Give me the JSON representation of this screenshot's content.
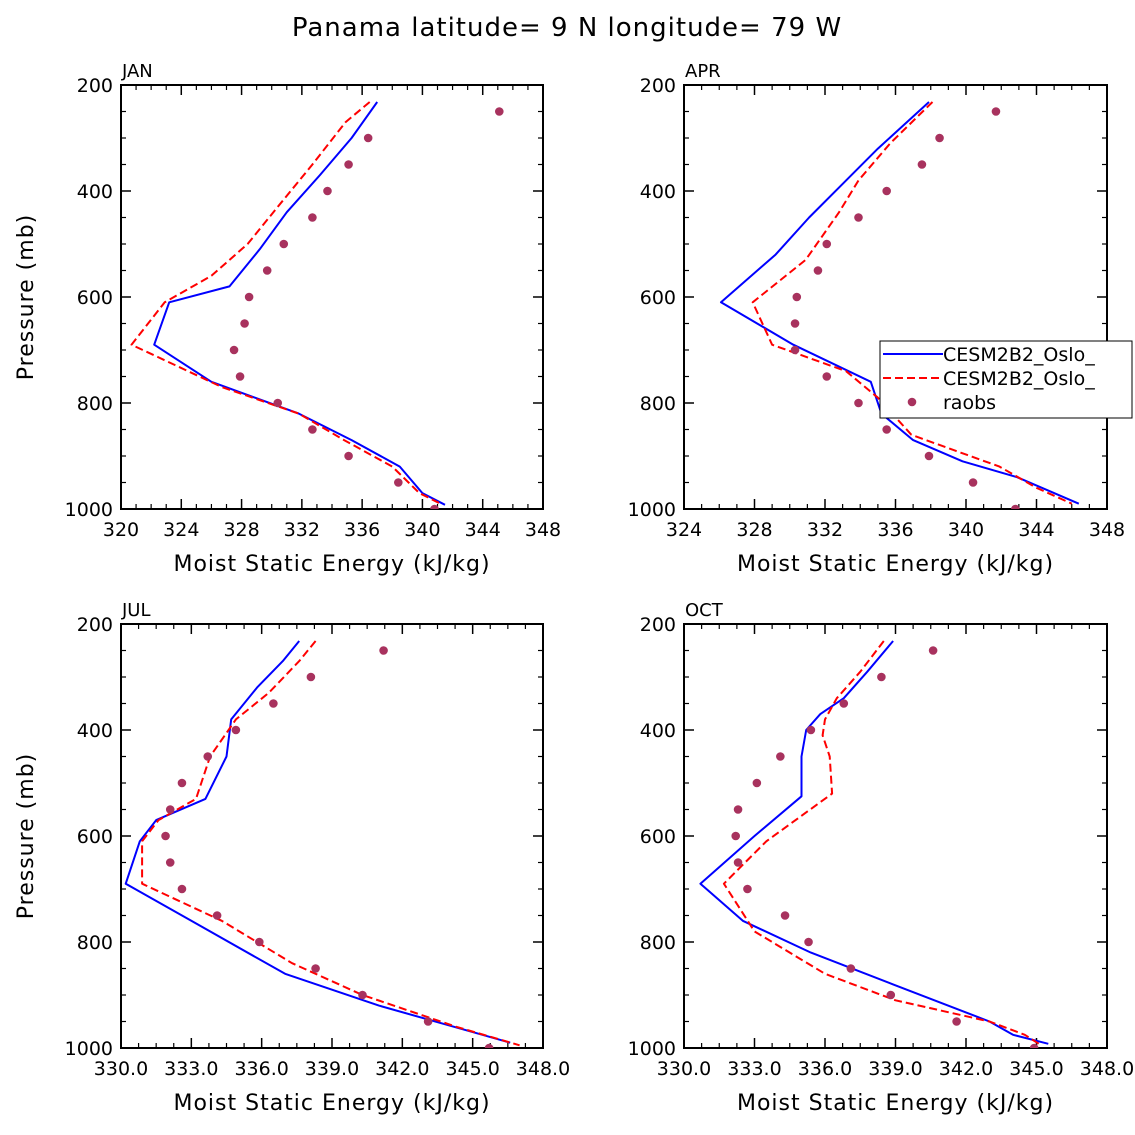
{
  "chart_data": {
    "type": "line",
    "title": "Panama  latitude= 9 N longitude= 79 W",
    "legend": {
      "placement": "right-middle of APR panel",
      "entries": [
        {
          "name": "CESM2B2_Oslo_",
          "style": "solid",
          "color": "#0000ff"
        },
        {
          "name": "CESM2B2_Oslo_",
          "style": "dashed",
          "color": "#ff0000"
        },
        {
          "name": "raobs",
          "style": "marker",
          "color": "#a8325e"
        }
      ]
    },
    "panels": [
      {
        "label": "JAN",
        "xlabel": "Moist Static Energy (kJ/kg)",
        "ylabel": "Pressure (mb)",
        "xlim": [
          320,
          348
        ],
        "ylim": [
          1000,
          200
        ],
        "xticks": [
          320,
          324,
          328,
          332,
          336,
          340,
          344,
          348
        ],
        "xtick_labels": [
          "320",
          "324",
          "328",
          "332",
          "336",
          "340",
          "344",
          "348"
        ],
        "yticks": [
          200,
          400,
          600,
          800,
          1000
        ],
        "ytick_labels": [
          "200",
          "400",
          "600",
          "800",
          "1000"
        ],
        "series": [
          {
            "name": "CESM2B2_Oslo_",
            "style": "solid",
            "color": "#0000ff",
            "x": [
              337.0,
              335.3,
              333.2,
              331.0,
              329.2,
              327.2,
              323.2,
              322.2,
              326.0,
              331.8,
              335.3,
              338.5,
              340.0,
              341.5
            ],
            "y": [
              232,
              300,
              370,
              440,
              510,
              580,
              610,
              690,
              760,
              820,
              870,
              920,
              970,
              992
            ]
          },
          {
            "name": "CESM2B2_Oslo_",
            "style": "dashed",
            "color": "#ff0000",
            "x": [
              336.5,
              334.9,
              332.7,
              330.4,
              328.4,
              326.0,
              322.9,
              320.7,
              326.7,
              331.8,
              334.8,
              338.0,
              339.8,
              341.2
            ],
            "y": [
              232,
              270,
              350,
              430,
              500,
              560,
              610,
              690,
              770,
              820,
              870,
              920,
              970,
              990
            ]
          },
          {
            "name": "raobs",
            "style": "marker",
            "color": "#a8325e",
            "x": [
              345.1,
              336.4,
              335.1,
              333.7,
              332.7,
              330.8,
              329.7,
              328.5,
              328.2,
              327.5,
              327.9,
              330.4,
              332.7,
              335.1,
              338.4,
              340.8
            ],
            "y": [
              250,
              300,
              350,
              400,
              450,
              500,
              550,
              600,
              650,
              700,
              750,
              800,
              850,
              900,
              950,
              1000
            ]
          }
        ]
      },
      {
        "label": "APR",
        "xlabel": "Moist Static Energy (kJ/kg)",
        "ylabel": "",
        "xlim": [
          324,
          348
        ],
        "ylim": [
          1000,
          200
        ],
        "xticks": [
          324,
          328,
          332,
          336,
          340,
          344,
          348
        ],
        "xtick_labels": [
          "324",
          "328",
          "332",
          "336",
          "340",
          "344",
          "348"
        ],
        "yticks": [
          200,
          400,
          600,
          800,
          1000
        ],
        "ytick_labels": [
          "200",
          "400",
          "600",
          "800",
          "1000"
        ],
        "series": [
          {
            "name": "CESM2B2_Oslo_",
            "style": "solid",
            "color": "#0000ff",
            "x": [
              337.9,
              335.0,
              333.2,
              331.1,
              329.2,
              326.1,
              330.2,
              334.6,
              335.2,
              337.0,
              339.8,
              342.9,
              345.0,
              346.4
            ],
            "y": [
              232,
              320,
              380,
              450,
              520,
              610,
              690,
              760,
              820,
              870,
              910,
              940,
              970,
              990
            ]
          },
          {
            "name": "CESM2B2_Oslo_",
            "style": "dashed",
            "color": "#ff0000",
            "x": [
              338.1,
              335.7,
              333.9,
              332.8,
              330.9,
              327.9,
              329.0,
              333.2,
              335.0,
              336.9,
              339.4,
              341.9,
              344.0,
              346.0
            ],
            "y": [
              232,
              310,
              380,
              440,
              530,
              610,
              690,
              740,
              790,
              860,
              890,
              920,
              960,
              990
            ]
          },
          {
            "name": "raobs",
            "style": "marker",
            "color": "#a8325e",
            "x": [
              341.7,
              338.5,
              337.5,
              335.5,
              333.9,
              332.1,
              331.6,
              330.4,
              330.3,
              330.3,
              332.1,
              333.9,
              335.5,
              337.9,
              340.4,
              342.8
            ],
            "y": [
              250,
              300,
              350,
              400,
              450,
              500,
              550,
              600,
              650,
              700,
              750,
              800,
              850,
              900,
              950,
              1000
            ]
          }
        ]
      },
      {
        "label": "JUL",
        "xlabel": "Moist Static Energy (kJ/kg)",
        "ylabel": "Pressure (mb)",
        "xlim": [
          330,
          348
        ],
        "ylim": [
          1000,
          200
        ],
        "xticks": [
          330,
          333,
          336,
          339,
          342,
          345,
          348
        ],
        "xtick_labels": [
          "330.0",
          "333.0",
          "336.0",
          "339.0",
          "342.0",
          "345.0",
          "348.0"
        ],
        "yticks": [
          200,
          400,
          600,
          800,
          1000
        ],
        "ytick_labels": [
          "200",
          "400",
          "600",
          "800",
          "1000"
        ],
        "series": [
          {
            "name": "CESM2B2_Oslo_",
            "style": "solid",
            "color": "#0000ff",
            "x": [
              337.6,
              336.9,
              335.8,
              334.7,
              334.5,
              333.6,
              331.5,
              330.8,
              330.2,
              333.0,
              337.0,
              341.0,
              345.0,
              346.6
            ],
            "y": [
              232,
              270,
              320,
              380,
              450,
              530,
              570,
              610,
              690,
              760,
              860,
              920,
              970,
              990
            ]
          },
          {
            "name": "CESM2B2_Oslo_",
            "style": "dashed",
            "color": "#ff0000",
            "x": [
              338.3,
              337.6,
              336.3,
              334.9,
              333.8,
              333.2,
              331.6,
              330.9,
              330.9,
              334.3,
              337.3,
              340.3,
              344.3,
              347.0
            ],
            "y": [
              232,
              270,
              330,
              380,
              450,
              530,
              570,
              610,
              690,
              760,
              840,
              900,
              960,
              995
            ]
          },
          {
            "name": "raobs",
            "style": "marker",
            "color": "#a8325e",
            "x": [
              341.2,
              338.1,
              336.5,
              334.9,
              333.7,
              332.6,
              332.1,
              331.9,
              332.1,
              332.6,
              334.1,
              335.9,
              338.3,
              340.3,
              343.1,
              345.7
            ],
            "y": [
              250,
              300,
              350,
              400,
              450,
              500,
              550,
              600,
              650,
              700,
              750,
              800,
              850,
              900,
              950,
              1000
            ]
          }
        ]
      },
      {
        "label": "OCT",
        "xlabel": "Moist Static Energy (kJ/kg)",
        "ylabel": "",
        "xlim": [
          330,
          348
        ],
        "ylim": [
          1000,
          200
        ],
        "xticks": [
          330,
          333,
          336,
          339,
          342,
          345,
          348
        ],
        "xtick_labels": [
          "330.0",
          "333.0",
          "336.0",
          "339.0",
          "342.0",
          "345.0",
          "348.0"
        ],
        "yticks": [
          200,
          400,
          600,
          800,
          1000
        ],
        "ytick_labels": [
          "200",
          "400",
          "600",
          "800",
          "1000"
        ],
        "series": [
          {
            "name": "CESM2B2_Oslo_",
            "style": "solid",
            "color": "#0000ff",
            "x": [
              338.9,
              337.8,
              336.8,
              335.8,
              335.2,
              335.0,
              335.0,
              333.0,
              330.7,
              332.5,
              335.4,
              338.9,
              343.0,
              344.0,
              345.5
            ],
            "y": [
              232,
              290,
              340,
              370,
              400,
              450,
              525,
              600,
              690,
              760,
              820,
              880,
              950,
              975,
              992
            ]
          },
          {
            "name": "CESM2B2_Oslo_",
            "style": "dashed",
            "color": "#ff0000",
            "x": [
              338.5,
              337.5,
              336.5,
              336.0,
              335.9,
              336.2,
              336.3,
              333.5,
              331.7,
              333.0,
              336.0,
              339.0,
              343.0,
              344.5,
              345.1
            ],
            "y": [
              232,
              290,
              340,
              380,
              410,
              450,
              520,
              610,
              690,
              780,
              860,
              910,
              950,
              975,
              992
            ]
          },
          {
            "name": "raobs",
            "style": "marker",
            "color": "#a8325e",
            "x": [
              340.6,
              338.4,
              336.8,
              335.4,
              334.1,
              333.1,
              332.3,
              332.2,
              332.3,
              332.7,
              334.3,
              335.3,
              337.1,
              338.8,
              341.6,
              344.9
            ],
            "y": [
              250,
              300,
              350,
              400,
              450,
              500,
              550,
              600,
              650,
              700,
              750,
              800,
              850,
              900,
              950,
              1000
            ]
          }
        ]
      }
    ]
  }
}
